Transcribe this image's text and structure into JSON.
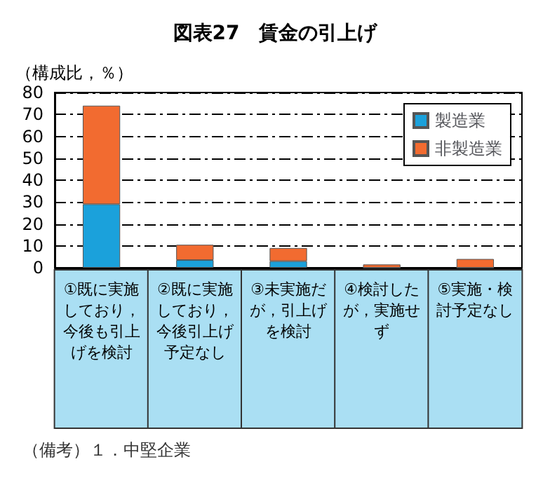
{
  "chart_data": {
    "type": "bar",
    "title": "図表27　賃金の引上げ",
    "ylabel": "（構成比，％）",
    "annotations": [
      "（備考）１．中堅企業"
    ],
    "categories": [
      "①既に実施しており，今後も引上げを検討",
      "②既に実施しており，今後引上げ予定なし",
      "③未実施だが，引上げを検討",
      "④検討したが，実施せず",
      "⑤実施・検討予定なし"
    ],
    "series": [
      {
        "name": "製造業",
        "color": "#1ba1db",
        "values": [
          29,
          3.5,
          3,
          0,
          0
        ]
      },
      {
        "name": "非製造業",
        "color": "#f26b30",
        "values": [
          45,
          7,
          6,
          1.5,
          4
        ]
      }
    ],
    "stacked": true,
    "ylim": [
      0,
      80
    ],
    "yticks": [
      0,
      10,
      20,
      30,
      40,
      50,
      60,
      70,
      80
    ],
    "grid": "y",
    "legend": "top right"
  }
}
